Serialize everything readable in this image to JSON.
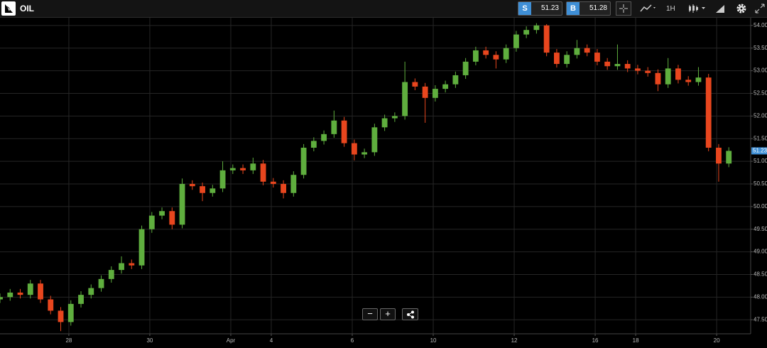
{
  "header": {
    "symbol": "OIL",
    "sell_label": "S",
    "sell": 51.23,
    "buy_label": "B",
    "buy": 51.28,
    "interval": "1H"
  },
  "chart_data": {
    "type": "candlestick",
    "up_color": "#5fae3e",
    "down_color": "#e8461e",
    "grid": true,
    "last_price": 51.23,
    "xlim": [
      -1.7,
      16.84
    ],
    "ylim": [
      47.19,
      54.17
    ],
    "xticks": [
      {
        "value": 0,
        "label": "28"
      },
      {
        "value": 2,
        "label": "30"
      },
      {
        "value": 4,
        "label": "Apr"
      },
      {
        "value": 5,
        "label": "4"
      },
      {
        "value": 7,
        "label": "6"
      },
      {
        "value": 9,
        "label": "10"
      },
      {
        "value": 11,
        "label": "12"
      },
      {
        "value": 13,
        "label": "16"
      },
      {
        "value": 14,
        "label": "18"
      },
      {
        "value": 16,
        "label": "20"
      }
    ],
    "yticks": [
      {
        "value": 47.5,
        "label": "47.50"
      },
      {
        "value": 48,
        "label": "48.00"
      },
      {
        "value": 48.5,
        "label": "48.50"
      },
      {
        "value": 49,
        "label": "49.00"
      },
      {
        "value": 49.5,
        "label": "49.50"
      },
      {
        "value": 50,
        "label": "50.00"
      },
      {
        "value": 50.5,
        "label": "50.50"
      },
      {
        "value": 51,
        "label": "51.00"
      },
      {
        "value": 51.5,
        "label": "51.50"
      },
      {
        "value": 52,
        "label": "52.00"
      },
      {
        "value": 52.5,
        "label": "52.50"
      },
      {
        "value": 53,
        "label": "53.00"
      },
      {
        "value": 53.5,
        "label": "53.50"
      },
      {
        "value": 54,
        "label": "54.00"
      }
    ],
    "x": [
      -1.7,
      -1.45,
      -1.2,
      -0.95,
      -0.7,
      -0.45,
      -0.2,
      0.05,
      0.3,
      0.55,
      0.8,
      1.05,
      1.3,
      1.55,
      1.8,
      2.05,
      2.3,
      2.55,
      2.8,
      3.05,
      3.3,
      3.55,
      3.8,
      4.05,
      4.3,
      4.55,
      4.8,
      5.05,
      5.3,
      5.55,
      5.8,
      6.05,
      6.3,
      6.55,
      6.8,
      7.05,
      7.3,
      7.55,
      7.8,
      8.05,
      8.3,
      8.55,
      8.8,
      9.05,
      9.3,
      9.55,
      9.8,
      10.05,
      10.3,
      10.55,
      10.8,
      11.05,
      11.3,
      11.55,
      11.8,
      12.05,
      12.3,
      12.55,
      12.8,
      13.05,
      13.3,
      13.55,
      13.8,
      14.05,
      14.3,
      14.55,
      14.8,
      15.05,
      15.3,
      15.55,
      15.8,
      16.05,
      16.3
    ],
    "open": [
      47.95,
      48.0,
      48.1,
      48.05,
      48.3,
      47.95,
      47.7,
      47.45,
      47.85,
      48.05,
      48.2,
      48.4,
      48.6,
      48.75,
      48.7,
      49.5,
      49.8,
      49.9,
      49.6,
      50.5,
      50.45,
      50.3,
      50.4,
      50.8,
      50.85,
      50.8,
      50.95,
      50.55,
      50.5,
      50.3,
      50.7,
      51.3,
      51.45,
      51.6,
      51.9,
      51.4,
      51.15,
      51.2,
      51.75,
      51.95,
      52.0,
      52.75,
      52.65,
      52.4,
      52.6,
      52.7,
      52.9,
      53.2,
      53.45,
      53.35,
      53.25,
      53.5,
      53.8,
      53.9,
      54.0,
      53.4,
      53.15,
      53.35,
      53.5,
      53.4,
      53.2,
      53.1,
      53.15,
      53.05,
      53.0,
      52.95,
      52.7,
      53.05,
      52.8,
      52.75,
      52.85,
      51.3,
      50.95
    ],
    "high": [
      48.08,
      48.18,
      48.18,
      48.38,
      48.38,
      48.03,
      47.78,
      47.93,
      48.13,
      48.28,
      48.48,
      48.68,
      48.9,
      48.83,
      49.58,
      49.88,
      49.98,
      49.98,
      50.62,
      50.58,
      50.53,
      50.48,
      51.0,
      50.93,
      50.93,
      51.08,
      51.03,
      50.63,
      50.58,
      50.78,
      51.38,
      51.53,
      51.68,
      52.12,
      51.98,
      51.48,
      51.28,
      51.83,
      52.03,
      52.08,
      53.2,
      52.83,
      52.73,
      52.68,
      52.78,
      52.98,
      53.28,
      53.53,
      53.53,
      53.43,
      53.58,
      53.88,
      53.98,
      54.05,
      54.03,
      53.48,
      53.43,
      53.68,
      53.58,
      53.48,
      53.28,
      53.58,
      53.23,
      53.13,
      53.08,
      53.03,
      53.28,
      53.13,
      52.88,
      53.08,
      52.93,
      51.38,
      51.31
    ],
    "low": [
      47.87,
      47.92,
      47.97,
      47.97,
      47.87,
      47.62,
      47.25,
      47.37,
      47.77,
      47.97,
      48.12,
      48.32,
      48.52,
      48.62,
      48.62,
      49.42,
      49.72,
      49.5,
      49.52,
      50.37,
      50.12,
      50.22,
      50.32,
      50.72,
      50.72,
      50.72,
      50.47,
      50.42,
      50.18,
      50.22,
      50.62,
      51.22,
      51.37,
      51.52,
      51.32,
      51.02,
      51.07,
      51.12,
      51.67,
      51.87,
      51.92,
      52.57,
      51.85,
      52.32,
      52.52,
      52.62,
      52.82,
      53.12,
      53.27,
      53.05,
      53.17,
      53.42,
      53.72,
      53.82,
      53.32,
      53.07,
      53.07,
      53.27,
      53.32,
      53.12,
      53.02,
      53.02,
      52.97,
      52.92,
      52.87,
      52.55,
      52.62,
      52.72,
      52.67,
      52.67,
      51.22,
      50.55,
      50.87
    ],
    "close": [
      48.0,
      48.1,
      48.05,
      48.3,
      47.95,
      47.7,
      47.45,
      47.85,
      48.05,
      48.2,
      48.4,
      48.6,
      48.75,
      48.7,
      49.5,
      49.8,
      49.9,
      49.6,
      50.5,
      50.45,
      50.3,
      50.4,
      50.8,
      50.85,
      50.8,
      50.95,
      50.55,
      50.5,
      50.3,
      50.7,
      51.3,
      51.45,
      51.6,
      51.9,
      51.4,
      51.15,
      51.2,
      51.75,
      51.95,
      52.0,
      52.75,
      52.65,
      52.4,
      52.6,
      52.7,
      52.9,
      53.2,
      53.45,
      53.35,
      53.25,
      53.5,
      53.8,
      53.9,
      54.0,
      53.4,
      53.15,
      53.35,
      53.5,
      53.4,
      53.2,
      53.1,
      53.15,
      53.05,
      53.0,
      52.95,
      52.7,
      53.05,
      52.8,
      52.75,
      52.85,
      51.3,
      50.95,
      51.23
    ]
  }
}
